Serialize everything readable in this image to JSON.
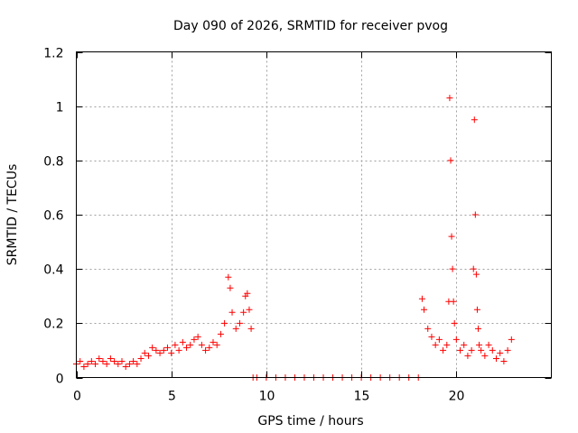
{
  "chart_data": {
    "type": "scatter",
    "title": "Day 090 of 2026, SRMTID for receiver pvog",
    "xlabel": "GPS time / hours",
    "ylabel": "SRMTID / TECUs",
    "xlim": [
      0,
      25
    ],
    "ylim": [
      0,
      1.2
    ],
    "xticks": [
      0,
      5,
      10,
      15,
      20
    ],
    "xtick_labels": [
      "0",
      "5",
      "10",
      "15",
      "20"
    ],
    "yticks": [
      0,
      0.2,
      0.4,
      0.6,
      0.8,
      1.0,
      1.2
    ],
    "ytick_labels": [
      "0",
      "0.2",
      "0.4",
      "0.6",
      "0.8",
      "1",
      "1.2"
    ],
    "grid": true,
    "marker": "+",
    "color": "#ff0000",
    "series": [
      {
        "name": "SRMTID",
        "x": [
          0.0,
          0.2,
          0.4,
          0.6,
          0.8,
          1.0,
          1.2,
          1.4,
          1.6,
          1.8,
          2.0,
          2.2,
          2.4,
          2.6,
          2.8,
          3.0,
          3.2,
          3.4,
          3.6,
          3.8,
          4.0,
          4.2,
          4.4,
          4.6,
          4.8,
          5.0,
          5.2,
          5.4,
          5.6,
          5.8,
          6.0,
          6.2,
          6.4,
          6.6,
          6.8,
          7.0,
          7.2,
          7.4,
          7.6,
          7.8,
          8.0,
          8.1,
          8.2,
          8.4,
          8.6,
          8.8,
          8.9,
          9.0,
          9.1,
          9.2,
          9.3,
          9.5,
          10.0,
          10.5,
          11.0,
          11.5,
          12.0,
          12.5,
          13.0,
          13.5,
          14.0,
          14.5,
          15.0,
          15.5,
          16.0,
          16.5,
          17.0,
          17.5,
          18.0,
          18.2,
          18.3,
          18.5,
          18.7,
          18.9,
          19.1,
          19.3,
          19.5,
          19.6,
          19.65,
          19.7,
          19.75,
          19.8,
          19.85,
          19.9,
          20.0,
          20.2,
          20.4,
          20.6,
          20.8,
          20.9,
          20.95,
          21.0,
          21.05,
          21.1,
          21.15,
          21.2,
          21.3,
          21.5,
          21.7,
          21.9,
          22.1,
          22.3,
          22.5,
          22.7,
          22.9
        ],
        "y": [
          0.05,
          0.06,
          0.04,
          0.05,
          0.06,
          0.05,
          0.07,
          0.06,
          0.05,
          0.07,
          0.06,
          0.05,
          0.06,
          0.04,
          0.05,
          0.06,
          0.05,
          0.07,
          0.09,
          0.08,
          0.11,
          0.1,
          0.09,
          0.1,
          0.11,
          0.09,
          0.12,
          0.1,
          0.13,
          0.11,
          0.12,
          0.14,
          0.15,
          0.12,
          0.1,
          0.11,
          0.13,
          0.12,
          0.16,
          0.2,
          0.37,
          0.33,
          0.24,
          0.18,
          0.2,
          0.24,
          0.3,
          0.31,
          0.25,
          0.18,
          0.0,
          0.0,
          0.0,
          0.0,
          0.0,
          0.0,
          0.0,
          0.0,
          0.0,
          0.0,
          0.0,
          0.0,
          0.0,
          0.0,
          0.0,
          0.0,
          0.0,
          0.0,
          0.0,
          0.29,
          0.25,
          0.18,
          0.15,
          0.12,
          0.14,
          0.1,
          0.12,
          0.28,
          1.03,
          0.8,
          0.52,
          0.4,
          0.28,
          0.2,
          0.14,
          0.1,
          0.12,
          0.08,
          0.1,
          0.4,
          0.95,
          0.6,
          0.38,
          0.25,
          0.18,
          0.12,
          0.1,
          0.08,
          0.12,
          0.1,
          0.07,
          0.09,
          0.06,
          0.1,
          0.14
        ]
      }
    ]
  }
}
